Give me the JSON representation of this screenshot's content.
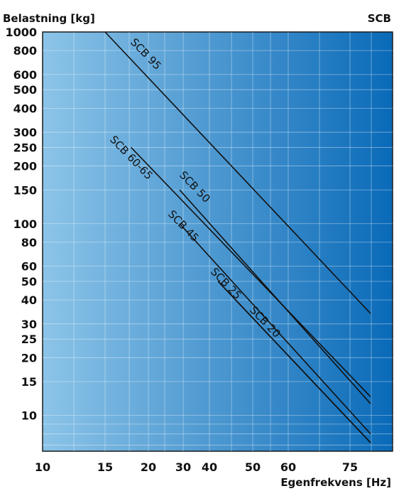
{
  "chart_data": {
    "type": "line",
    "title": "",
    "brand": "SCB",
    "ylabel": "Belastning [kg]",
    "xlabel": "Egenfrekvens [Hz]",
    "y_scale": "log",
    "ylim": [
      6.5,
      1000
    ],
    "y_ticks": [
      1000,
      800,
      600,
      500,
      400,
      300,
      250,
      200,
      150,
      100,
      80,
      60,
      50,
      40,
      30,
      25,
      20,
      15,
      10
    ],
    "x_ticks": [
      10,
      15,
      20,
      30,
      40,
      50,
      60,
      75
    ],
    "grid": true,
    "legend": "none",
    "background_gradient": [
      "#8cc4e8",
      "#0a6ab8"
    ],
    "line_color": "#111111",
    "series": [
      {
        "name": "SCB 95",
        "from": {
          "x": 15,
          "y": 1000
        },
        "to": {
          "x": 80,
          "y": 34
        }
      },
      {
        "name": "SCB 60-65",
        "from": {
          "x": 18,
          "y": 250
        },
        "to": {
          "x": 80,
          "y": 12.5
        }
      },
      {
        "name": "SCB 50",
        "from": {
          "x": 29,
          "y": 150
        },
        "to": {
          "x": 80,
          "y": 11.5
        }
      },
      {
        "name": "SCB 45",
        "from": {
          "x": 29,
          "y": 100
        },
        "to": {
          "x": 80,
          "y": 8
        }
      },
      {
        "name": "SCB 25",
        "from": {
          "x": 42,
          "y": 50
        },
        "to": {
          "x": 80,
          "y": 7.2
        }
      },
      {
        "name": "SCB 20",
        "from": {
          "x": 42,
          "y": 50
        },
        "to": {
          "x": 80,
          "y": 7.2
        }
      }
    ]
  }
}
